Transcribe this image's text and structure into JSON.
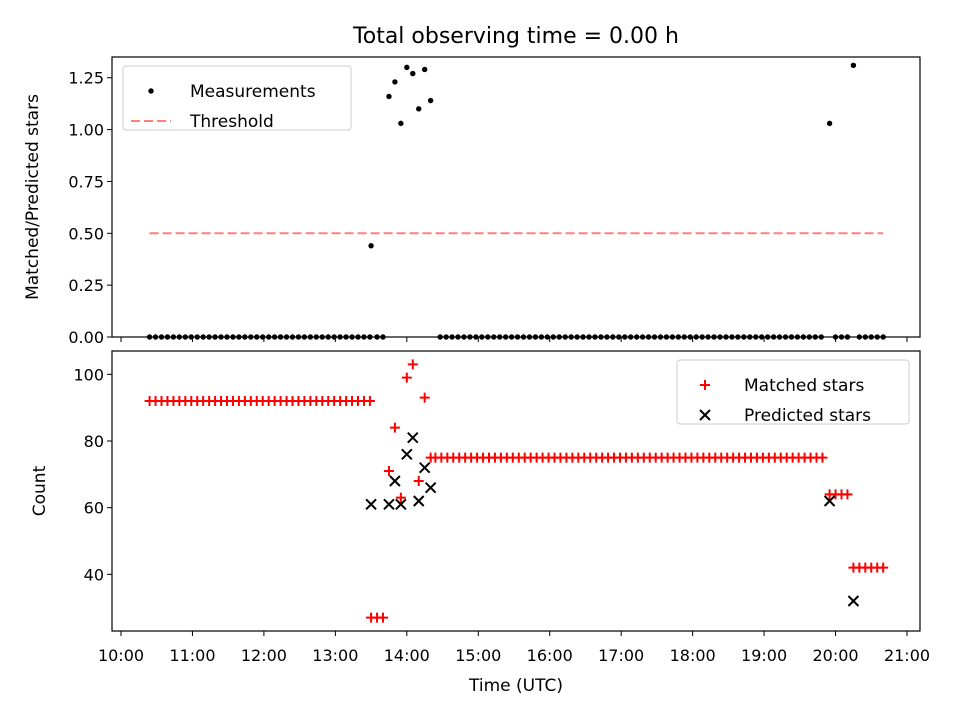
{
  "figure": {
    "title": "Total observing time = 0.00 h",
    "xlabel": "Time (UTC)"
  },
  "chart_data": [
    {
      "type": "scatter",
      "ylabel": "Matched/Predicted stars",
      "xlim": [
        "10:00",
        "21:00"
      ],
      "ylim": [
        0,
        1.35
      ],
      "yticks": [
        "0.00",
        "0.25",
        "0.50",
        "0.75",
        "1.00",
        "1.25"
      ],
      "legend_position": "top-left",
      "series": [
        {
          "name": "Measurements",
          "marker": "dot",
          "color": "#000000",
          "points": [
            [
              "10:24",
              0
            ],
            [
              "10:29",
              0
            ],
            [
              "10:34",
              0
            ],
            [
              "10:39",
              0
            ],
            [
              "10:44",
              0
            ],
            [
              "10:49",
              0
            ],
            [
              "10:54",
              0
            ],
            [
              "10:59",
              0
            ],
            [
              "11:04",
              0
            ],
            [
              "11:09",
              0
            ],
            [
              "11:14",
              0
            ],
            [
              "11:19",
              0
            ],
            [
              "11:24",
              0
            ],
            [
              "11:29",
              0
            ],
            [
              "11:34",
              0
            ],
            [
              "11:39",
              0
            ],
            [
              "11:44",
              0
            ],
            [
              "11:49",
              0
            ],
            [
              "11:54",
              0
            ],
            [
              "11:59",
              0
            ],
            [
              "12:04",
              0
            ],
            [
              "12:09",
              0
            ],
            [
              "12:14",
              0
            ],
            [
              "12:19",
              0
            ],
            [
              "12:24",
              0
            ],
            [
              "12:29",
              0
            ],
            [
              "12:34",
              0
            ],
            [
              "12:39",
              0
            ],
            [
              "12:44",
              0
            ],
            [
              "12:49",
              0
            ],
            [
              "12:54",
              0
            ],
            [
              "12:59",
              0
            ],
            [
              "13:04",
              0
            ],
            [
              "13:09",
              0
            ],
            [
              "13:14",
              0
            ],
            [
              "13:19",
              0
            ],
            [
              "13:24",
              0
            ],
            [
              "13:29",
              0
            ],
            [
              "13:30",
              0.44
            ],
            [
              "13:35",
              0
            ],
            [
              "13:40",
              0
            ],
            [
              "13:45",
              1.16
            ],
            [
              "13:50",
              1.23
            ],
            [
              "13:55",
              1.03
            ],
            [
              "14:00",
              1.3
            ],
            [
              "14:05",
              1.27
            ],
            [
              "14:10",
              1.1
            ],
            [
              "14:15",
              1.29
            ],
            [
              "14:20",
              1.14
            ],
            [
              "14:28",
              0
            ],
            [
              "14:33",
              0
            ],
            [
              "14:38",
              0
            ],
            [
              "14:43",
              0
            ],
            [
              "14:48",
              0
            ],
            [
              "14:53",
              0
            ],
            [
              "14:58",
              0
            ],
            [
              "15:03",
              0
            ],
            [
              "15:08",
              0
            ],
            [
              "15:13",
              0
            ],
            [
              "15:18",
              0
            ],
            [
              "15:23",
              0
            ],
            [
              "15:28",
              0
            ],
            [
              "15:33",
              0
            ],
            [
              "15:38",
              0
            ],
            [
              "15:43",
              0
            ],
            [
              "15:48",
              0
            ],
            [
              "15:53",
              0
            ],
            [
              "15:58",
              0
            ],
            [
              "16:03",
              0
            ],
            [
              "16:08",
              0
            ],
            [
              "16:13",
              0
            ],
            [
              "16:18",
              0
            ],
            [
              "16:23",
              0
            ],
            [
              "16:28",
              0
            ],
            [
              "16:33",
              0
            ],
            [
              "16:38",
              0
            ],
            [
              "16:43",
              0
            ],
            [
              "16:48",
              0
            ],
            [
              "16:53",
              0
            ],
            [
              "16:58",
              0
            ],
            [
              "17:03",
              0
            ],
            [
              "17:08",
              0
            ],
            [
              "17:13",
              0
            ],
            [
              "17:18",
              0
            ],
            [
              "17:23",
              0
            ],
            [
              "17:28",
              0
            ],
            [
              "17:33",
              0
            ],
            [
              "17:38",
              0
            ],
            [
              "17:43",
              0
            ],
            [
              "17:48",
              0
            ],
            [
              "17:53",
              0
            ],
            [
              "17:58",
              0
            ],
            [
              "18:03",
              0
            ],
            [
              "18:08",
              0
            ],
            [
              "18:13",
              0
            ],
            [
              "18:18",
              0
            ],
            [
              "18:23",
              0
            ],
            [
              "18:28",
              0
            ],
            [
              "18:33",
              0
            ],
            [
              "18:38",
              0
            ],
            [
              "18:43",
              0
            ],
            [
              "18:48",
              0
            ],
            [
              "18:53",
              0
            ],
            [
              "18:58",
              0
            ],
            [
              "19:03",
              0
            ],
            [
              "19:08",
              0
            ],
            [
              "19:13",
              0
            ],
            [
              "19:18",
              0
            ],
            [
              "19:23",
              0
            ],
            [
              "19:28",
              0
            ],
            [
              "19:33",
              0
            ],
            [
              "19:38",
              0
            ],
            [
              "19:43",
              0
            ],
            [
              "19:48",
              0
            ],
            [
              "19:55",
              1.03
            ],
            [
              "20:00",
              0
            ],
            [
              "20:05",
              0
            ],
            [
              "20:10",
              0
            ],
            [
              "20:15",
              1.31
            ],
            [
              "20:20",
              0
            ],
            [
              "20:25",
              0
            ],
            [
              "20:30",
              0
            ],
            [
              "20:35",
              0
            ],
            [
              "20:40",
              0
            ]
          ]
        },
        {
          "name": "Threshold",
          "marker": "dashed-line",
          "color": "#ff7f7f",
          "points": [
            [
              "10:24",
              0.5
            ],
            [
              "20:40",
              0.5
            ]
          ]
        }
      ]
    },
    {
      "type": "scatter",
      "ylabel": "Count",
      "xlim": [
        "10:00",
        "21:00"
      ],
      "ylim": [
        23,
        107
      ],
      "yticks": [
        "40",
        "60",
        "80",
        "100"
      ],
      "xticks": [
        "10:00",
        "11:00",
        "12:00",
        "13:00",
        "14:00",
        "15:00",
        "16:00",
        "17:00",
        "18:00",
        "19:00",
        "20:00",
        "21:00"
      ],
      "legend_position": "top-right",
      "series": [
        {
          "name": "Matched stars",
          "marker": "plus",
          "color": "#ff0000",
          "points": [
            [
              "10:24",
              92
            ],
            [
              "10:29",
              92
            ],
            [
              "10:34",
              92
            ],
            [
              "10:39",
              92
            ],
            [
              "10:44",
              92
            ],
            [
              "10:49",
              92
            ],
            [
              "10:54",
              92
            ],
            [
              "10:59",
              92
            ],
            [
              "11:04",
              92
            ],
            [
              "11:09",
              92
            ],
            [
              "11:14",
              92
            ],
            [
              "11:19",
              92
            ],
            [
              "11:24",
              92
            ],
            [
              "11:29",
              92
            ],
            [
              "11:34",
              92
            ],
            [
              "11:39",
              92
            ],
            [
              "11:44",
              92
            ],
            [
              "11:49",
              92
            ],
            [
              "11:54",
              92
            ],
            [
              "11:59",
              92
            ],
            [
              "12:04",
              92
            ],
            [
              "12:09",
              92
            ],
            [
              "12:14",
              92
            ],
            [
              "12:19",
              92
            ],
            [
              "12:24",
              92
            ],
            [
              "12:29",
              92
            ],
            [
              "12:34",
              92
            ],
            [
              "12:39",
              92
            ],
            [
              "12:44",
              92
            ],
            [
              "12:49",
              92
            ],
            [
              "12:54",
              92
            ],
            [
              "12:59",
              92
            ],
            [
              "13:04",
              92
            ],
            [
              "13:09",
              92
            ],
            [
              "13:14",
              92
            ],
            [
              "13:19",
              92
            ],
            [
              "13:24",
              92
            ],
            [
              "13:29",
              92
            ],
            [
              "13:30",
              27
            ],
            [
              "13:35",
              27
            ],
            [
              "13:40",
              27
            ],
            [
              "13:45",
              71
            ],
            [
              "13:50",
              84
            ],
            [
              "13:55",
              63
            ],
            [
              "14:00",
              99
            ],
            [
              "14:05",
              103
            ],
            [
              "14:10",
              68
            ],
            [
              "14:15",
              93
            ],
            [
              "14:20",
              75
            ],
            [
              "14:24",
              75
            ],
            [
              "14:29",
              75
            ],
            [
              "14:34",
              75
            ],
            [
              "14:39",
              75
            ],
            [
              "14:44",
              75
            ],
            [
              "14:49",
              75
            ],
            [
              "14:54",
              75
            ],
            [
              "14:59",
              75
            ],
            [
              "15:04",
              75
            ],
            [
              "15:09",
              75
            ],
            [
              "15:14",
              75
            ],
            [
              "15:19",
              75
            ],
            [
              "15:24",
              75
            ],
            [
              "15:29",
              75
            ],
            [
              "15:34",
              75
            ],
            [
              "15:39",
              75
            ],
            [
              "15:44",
              75
            ],
            [
              "15:49",
              75
            ],
            [
              "15:54",
              75
            ],
            [
              "15:59",
              75
            ],
            [
              "16:04",
              75
            ],
            [
              "16:09",
              75
            ],
            [
              "16:14",
              75
            ],
            [
              "16:19",
              75
            ],
            [
              "16:24",
              75
            ],
            [
              "16:29",
              75
            ],
            [
              "16:34",
              75
            ],
            [
              "16:39",
              75
            ],
            [
              "16:44",
              75
            ],
            [
              "16:49",
              75
            ],
            [
              "16:54",
              75
            ],
            [
              "16:59",
              75
            ],
            [
              "17:04",
              75
            ],
            [
              "17:09",
              75
            ],
            [
              "17:14",
              75
            ],
            [
              "17:19",
              75
            ],
            [
              "17:24",
              75
            ],
            [
              "17:29",
              75
            ],
            [
              "17:34",
              75
            ],
            [
              "17:39",
              75
            ],
            [
              "17:44",
              75
            ],
            [
              "17:49",
              75
            ],
            [
              "17:54",
              75
            ],
            [
              "17:59",
              75
            ],
            [
              "18:04",
              75
            ],
            [
              "18:09",
              75
            ],
            [
              "18:14",
              75
            ],
            [
              "18:19",
              75
            ],
            [
              "18:24",
              75
            ],
            [
              "18:29",
              75
            ],
            [
              "18:34",
              75
            ],
            [
              "18:39",
              75
            ],
            [
              "18:44",
              75
            ],
            [
              "18:49",
              75
            ],
            [
              "18:54",
              75
            ],
            [
              "18:59",
              75
            ],
            [
              "19:04",
              75
            ],
            [
              "19:09",
              75
            ],
            [
              "19:14",
              75
            ],
            [
              "19:19",
              75
            ],
            [
              "19:24",
              75
            ],
            [
              "19:29",
              75
            ],
            [
              "19:34",
              75
            ],
            [
              "19:39",
              75
            ],
            [
              "19:44",
              75
            ],
            [
              "19:49",
              75
            ],
            [
              "19:55",
              64
            ],
            [
              "20:00",
              64
            ],
            [
              "20:05",
              64
            ],
            [
              "20:10",
              64
            ],
            [
              "20:15",
              42
            ],
            [
              "20:20",
              42
            ],
            [
              "20:25",
              42
            ],
            [
              "20:30",
              42
            ],
            [
              "20:35",
              42
            ],
            [
              "20:40",
              42
            ]
          ]
        },
        {
          "name": "Predicted stars",
          "marker": "x",
          "color": "#000000",
          "points": [
            [
              "13:30",
              61
            ],
            [
              "13:45",
              61
            ],
            [
              "13:50",
              68
            ],
            [
              "13:55",
              61
            ],
            [
              "14:00",
              76
            ],
            [
              "14:05",
              81
            ],
            [
              "14:10",
              62
            ],
            [
              "14:15",
              72
            ],
            [
              "14:20",
              66
            ],
            [
              "19:55",
              62
            ],
            [
              "20:15",
              32
            ]
          ]
        }
      ]
    }
  ]
}
